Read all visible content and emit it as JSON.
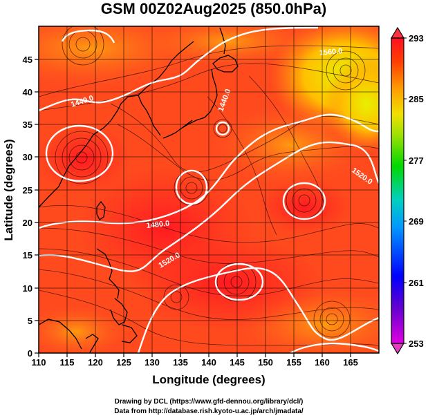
{
  "title": "GSM 00Z02Aug2025 (850.0hPa)",
  "x_axis": {
    "label": "Longitude (degrees)",
    "range": [
      110,
      170
    ],
    "ticks": [
      "110",
      "115",
      "120",
      "125",
      "130",
      "135",
      "140",
      "145",
      "150",
      "155",
      "160",
      "165"
    ]
  },
  "y_axis": {
    "label": "Latitude  (degrees)",
    "range": [
      0,
      50
    ],
    "ticks": [
      "0",
      "5",
      "10",
      "15",
      "20",
      "25",
      "30",
      "35",
      "40",
      "45"
    ]
  },
  "colorbar": {
    "range": [
      253,
      293
    ],
    "labels": [
      "293",
      "285",
      "277",
      "269",
      "261",
      "253"
    ],
    "colors": [
      "#d800d8",
      "#5a00c8",
      "#0000ff",
      "#0090ff",
      "#00d8d8",
      "#00d800",
      "#9adf00",
      "#f0e000",
      "#ff9a00",
      "#ff3000",
      "#ff1020"
    ]
  },
  "contour_labels": [
    "1440.0",
    "1440.0",
    "1480.0",
    "1520.0",
    "1520.0",
    "1560.0"
  ],
  "credits": {
    "line1": "Drawing by DCL (https://www.gfd-dennou.org/library/dcl/)",
    "line2": "Data from http://database.rish.kyoto-u.ac.jp/arch/jmadata/"
  },
  "colors": {
    "field_warm": "#ff3a1e",
    "field_mid": "#ff7a10",
    "field_cool": "#ffb000",
    "field_yellow": "#e8e800",
    "contour": "#ffffff",
    "coast": "#000000"
  }
}
